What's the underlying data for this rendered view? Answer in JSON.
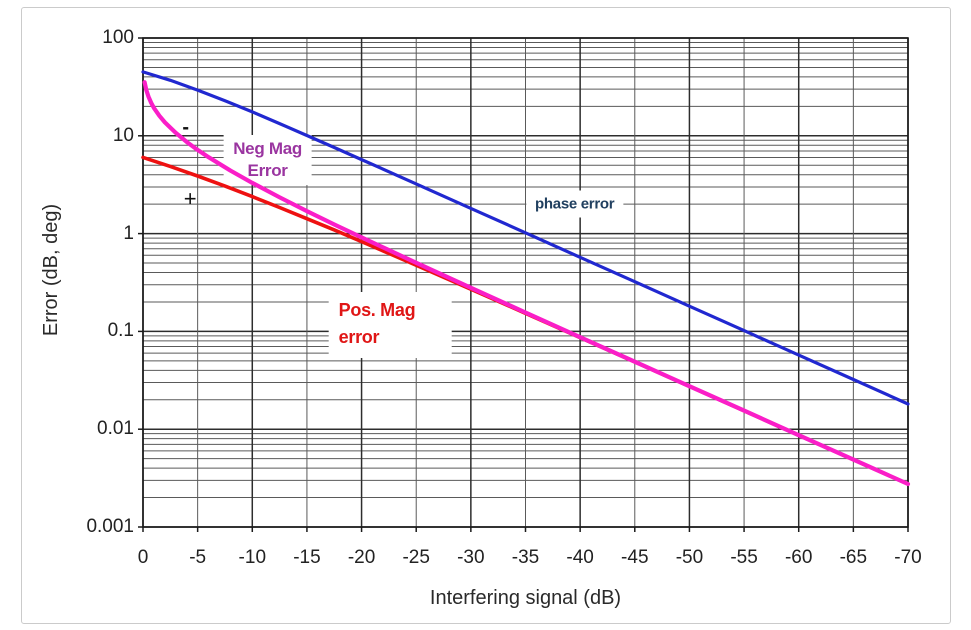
{
  "chart_data": {
    "type": "line",
    "title": "",
    "xlabel": "Interfering signal (dB)",
    "ylabel": "Error (dB, deg)",
    "x_axis": {
      "min": 0,
      "max": -70,
      "ticks": [
        0,
        -5,
        -10,
        -15,
        -20,
        -25,
        -30,
        -35,
        -40,
        -45,
        -50,
        -55,
        -60,
        -65,
        -70
      ],
      "tick_labels": [
        "0",
        "-5",
        "-10",
        "-15",
        "-20",
        "-25",
        "-30",
        "-35",
        "-40",
        "-45",
        "-50",
        "-55",
        "-60",
        "-65",
        "-70"
      ]
    },
    "y_axis": {
      "scale": "log",
      "min": 0.001,
      "max": 100,
      "ticks": [
        100,
        10,
        1,
        0.1,
        0.01,
        0.001
      ],
      "tick_labels": [
        "100",
        "10",
        "1",
        "0.1",
        "0.01",
        "0.001"
      ]
    },
    "grid": {
      "vertical_every_db": 5,
      "vertical_major_every_db": 10,
      "log_minor_lines": true
    },
    "series": [
      {
        "name": "Pos. Mag error",
        "color": "#ee1111",
        "width": 3.6,
        "x": [
          0,
          -2.5,
          -5,
          -7.5,
          -10,
          -12.5,
          -15,
          -17.5,
          -20,
          -25,
          -30,
          -35,
          -40,
          -45,
          -50,
          -55,
          -60,
          -65,
          -70
        ],
        "y": [
          6.02,
          4.86,
          3.88,
          3.06,
          2.39,
          1.85,
          1.42,
          1.09,
          0.828,
          0.475,
          0.27,
          0.153,
          0.0864,
          0.0487,
          0.0274,
          0.0154,
          0.00868,
          0.00488,
          0.00275
        ]
      },
      {
        "name": "Neg Mag Error",
        "color": "#fa1ec8",
        "width": 4.2,
        "x": [
          -0.15,
          -0.3,
          -0.5,
          -0.75,
          -1,
          -1.5,
          -2,
          -3,
          -4,
          -5,
          -6,
          -8,
          -10,
          -12.5,
          -15,
          -17.5,
          -20,
          -25,
          -30,
          -35,
          -40,
          -45,
          -50,
          -55,
          -60,
          -65,
          -70
        ],
        "y": [
          35.3,
          29.4,
          25.1,
          21.7,
          19.3,
          16.0,
          13.7,
          10.7,
          8.66,
          7.18,
          6.04,
          4.41,
          3.3,
          2.35,
          1.7,
          1.24,
          0.915,
          0.503,
          0.279,
          0.156,
          0.0873,
          0.049,
          0.0275,
          0.0155,
          0.00869,
          0.00489,
          0.00275
        ]
      },
      {
        "name": "phase error",
        "color": "#2128d0",
        "width": 3.2,
        "x": [
          0,
          -2.5,
          -5,
          -7.5,
          -10,
          -12.5,
          -15,
          -17.5,
          -20,
          -25,
          -30,
          -35,
          -40,
          -45,
          -50,
          -55,
          -60,
          -65,
          -70
        ],
        "y": [
          45.0,
          36.9,
          29.35,
          22.86,
          17.55,
          13.34,
          10.08,
          7.6,
          5.71,
          3.22,
          1.81,
          1.02,
          0.573,
          0.322,
          0.181,
          0.102,
          0.0573,
          0.0322,
          0.0181
        ]
      }
    ],
    "annotations": [
      {
        "id": "neg-mag-label",
        "lines": [
          "Neg Mag",
          "Error"
        ],
        "color": "#9a35a0",
        "x_db": -11.4,
        "y_val": 5.7
      },
      {
        "id": "phase-label",
        "lines": [
          "phase error"
        ],
        "color": "#214060",
        "x_db": -39.5,
        "y_val": 2.0
      },
      {
        "id": "pos-mag-label",
        "lines": [
          "Pos. Mag",
          "error"
        ],
        "color": "#e01616",
        "x_db": -22.6,
        "y_val": 0.115
      },
      {
        "id": "minus-sign",
        "lines": [
          "-"
        ],
        "color": "#111111",
        "x_db": -3.9,
        "y_val": 12.0
      },
      {
        "id": "plus-sign",
        "lines": [
          "+"
        ],
        "color": "#111111",
        "x_db": -4.3,
        "y_val": 2.27
      }
    ],
    "legend": "none"
  },
  "colors": {
    "grid_major": "#2d2d2d",
    "grid_minor": "#5a5a5a",
    "frame": "#1a1a1a",
    "background": "#ffffff"
  }
}
